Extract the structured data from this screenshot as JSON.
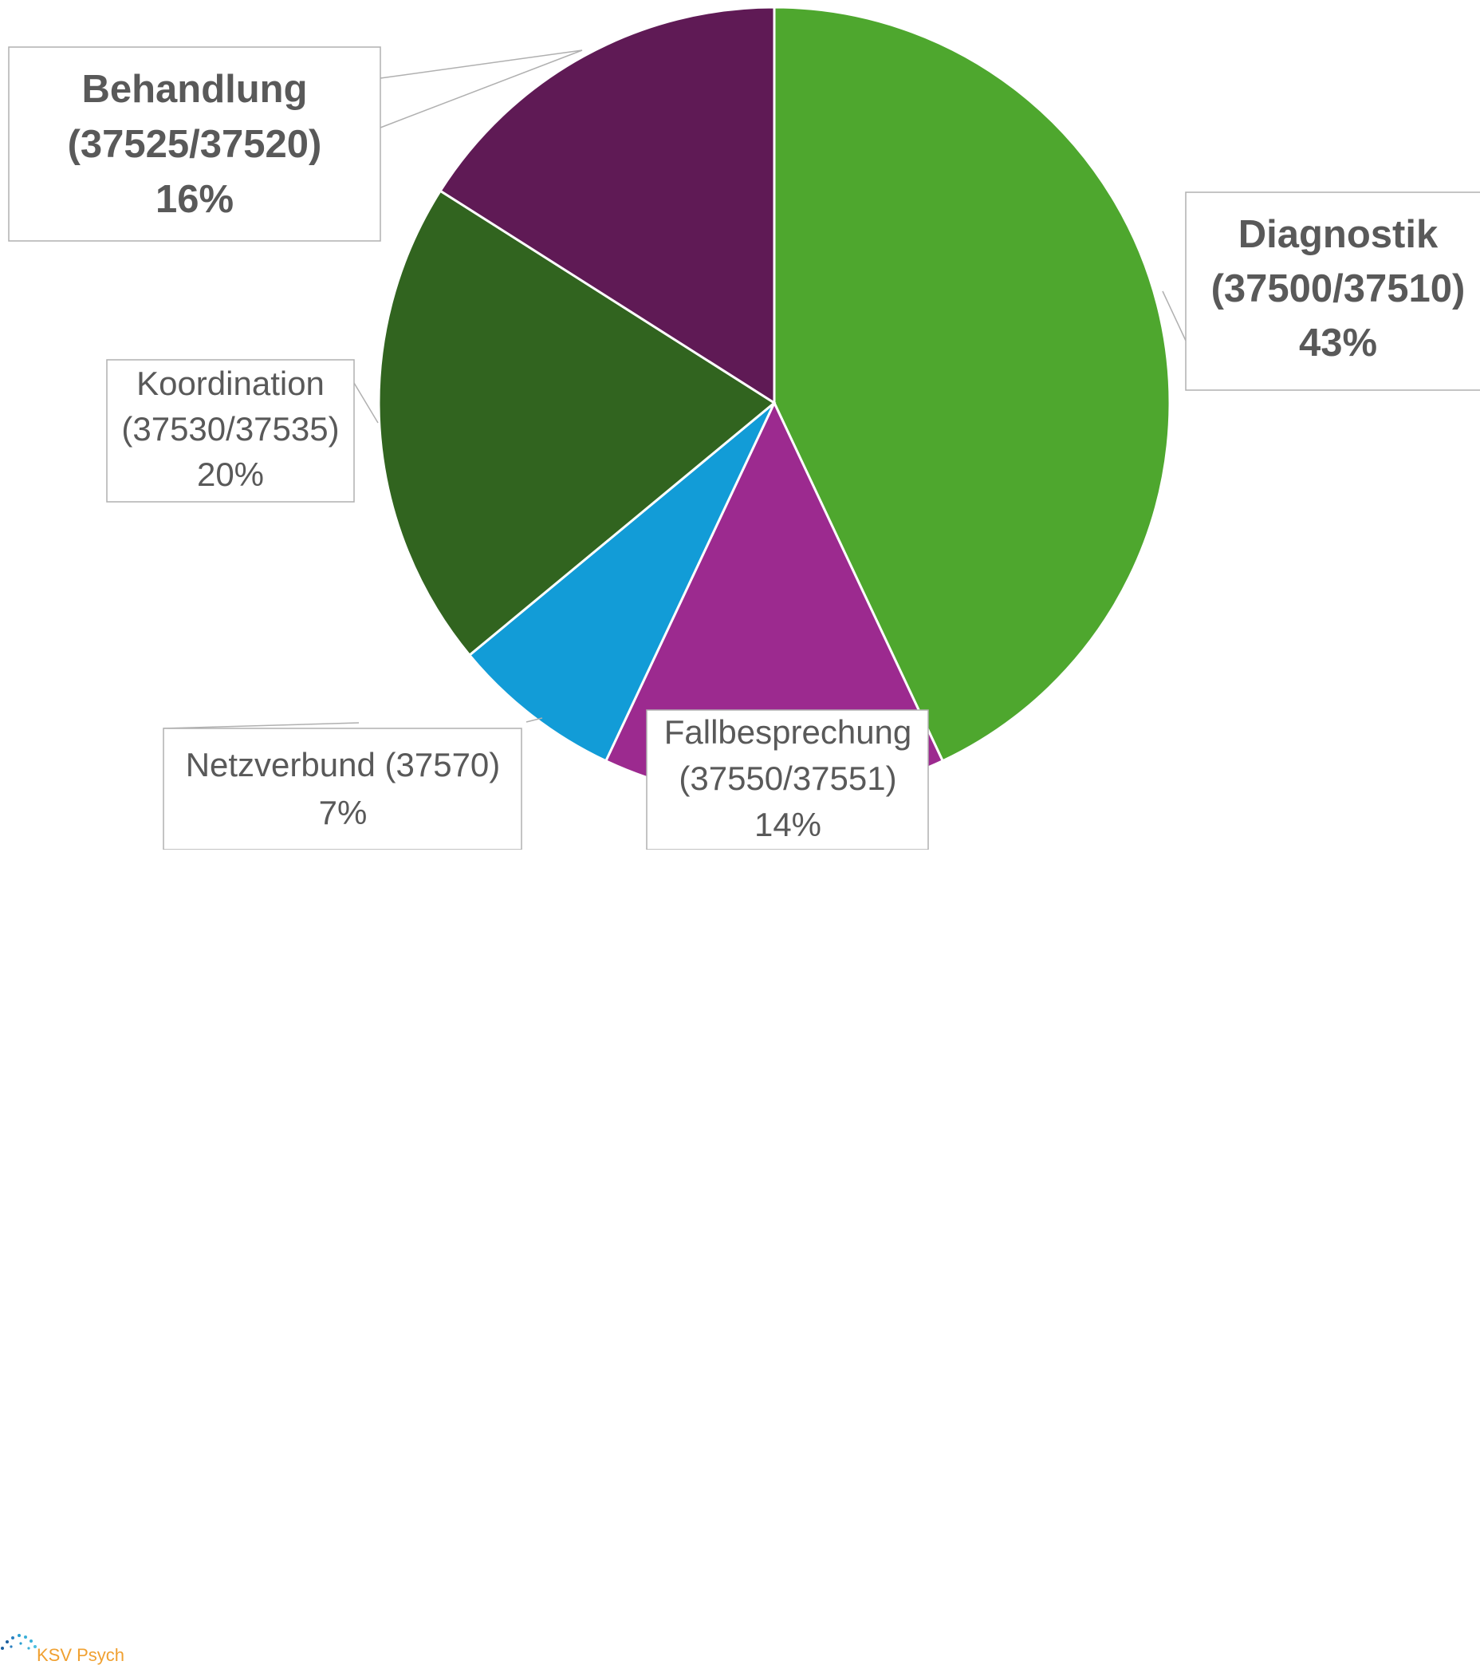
{
  "chart_data": {
    "type": "pie",
    "title": "",
    "slices": [
      {
        "name": "Diagnostik",
        "code": "(37500/37510)",
        "value": 43,
        "pct_label": "43%",
        "color": "#4ea72e",
        "bold": true
      },
      {
        "name": "Fallbesprechung",
        "code": "(37550/37551)",
        "value": 14,
        "pct_label": "14%",
        "color": "#9c2a8f",
        "bold": false
      },
      {
        "name": "Netzverbund (37570)",
        "code": "",
        "value": 7,
        "pct_label": "7%",
        "color": "#129cd7",
        "bold": false
      },
      {
        "name": "Koordination",
        "code": "(37530/37535)",
        "value": 20,
        "pct_label": "20%",
        "color": "#31641f",
        "bold": false
      },
      {
        "name": "Behandlung",
        "code": "(37525/37520)",
        "value": 16,
        "pct_label": "16%",
        "color": "#5f1a55",
        "bold": true
      }
    ]
  },
  "branding": {
    "logo_text": "KSV Psych"
  }
}
